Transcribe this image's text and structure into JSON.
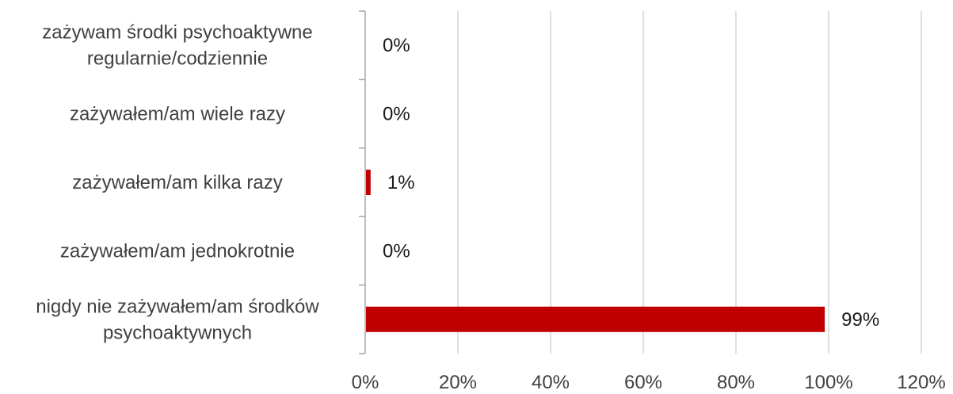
{
  "chart_data": {
    "type": "bar",
    "orientation": "horizontal",
    "title": "",
    "xlabel": "",
    "ylabel": "",
    "categories": [
      [
        "zażywam środki psychoaktywne",
        "regularnie/codziennie"
      ],
      [
        "zażywałem/am wiele razy"
      ],
      [
        "zażywałem/am kilka razy"
      ],
      [
        "zażywałem/am jednokrotnie"
      ],
      [
        "nigdy nie zażywałem/am środków",
        "psychoaktywnych"
      ]
    ],
    "values": [
      0,
      0,
      1,
      0,
      99
    ],
    "data_labels": [
      "0%",
      "0%",
      "1%",
      "0%",
      "99%"
    ],
    "xlim": [
      0,
      120
    ],
    "x_ticks": [
      0,
      20,
      40,
      60,
      80,
      100,
      120
    ],
    "x_tick_labels": [
      "0%",
      "20%",
      "40%",
      "60%",
      "80%",
      "100%",
      "120%"
    ],
    "grid": true,
    "legend": "none",
    "colors": {
      "bar": "#c00000",
      "grid": "#bfbfbf",
      "axis": "#a6a6a6",
      "text": "#404040",
      "data_label": "#1a1a1a"
    }
  }
}
